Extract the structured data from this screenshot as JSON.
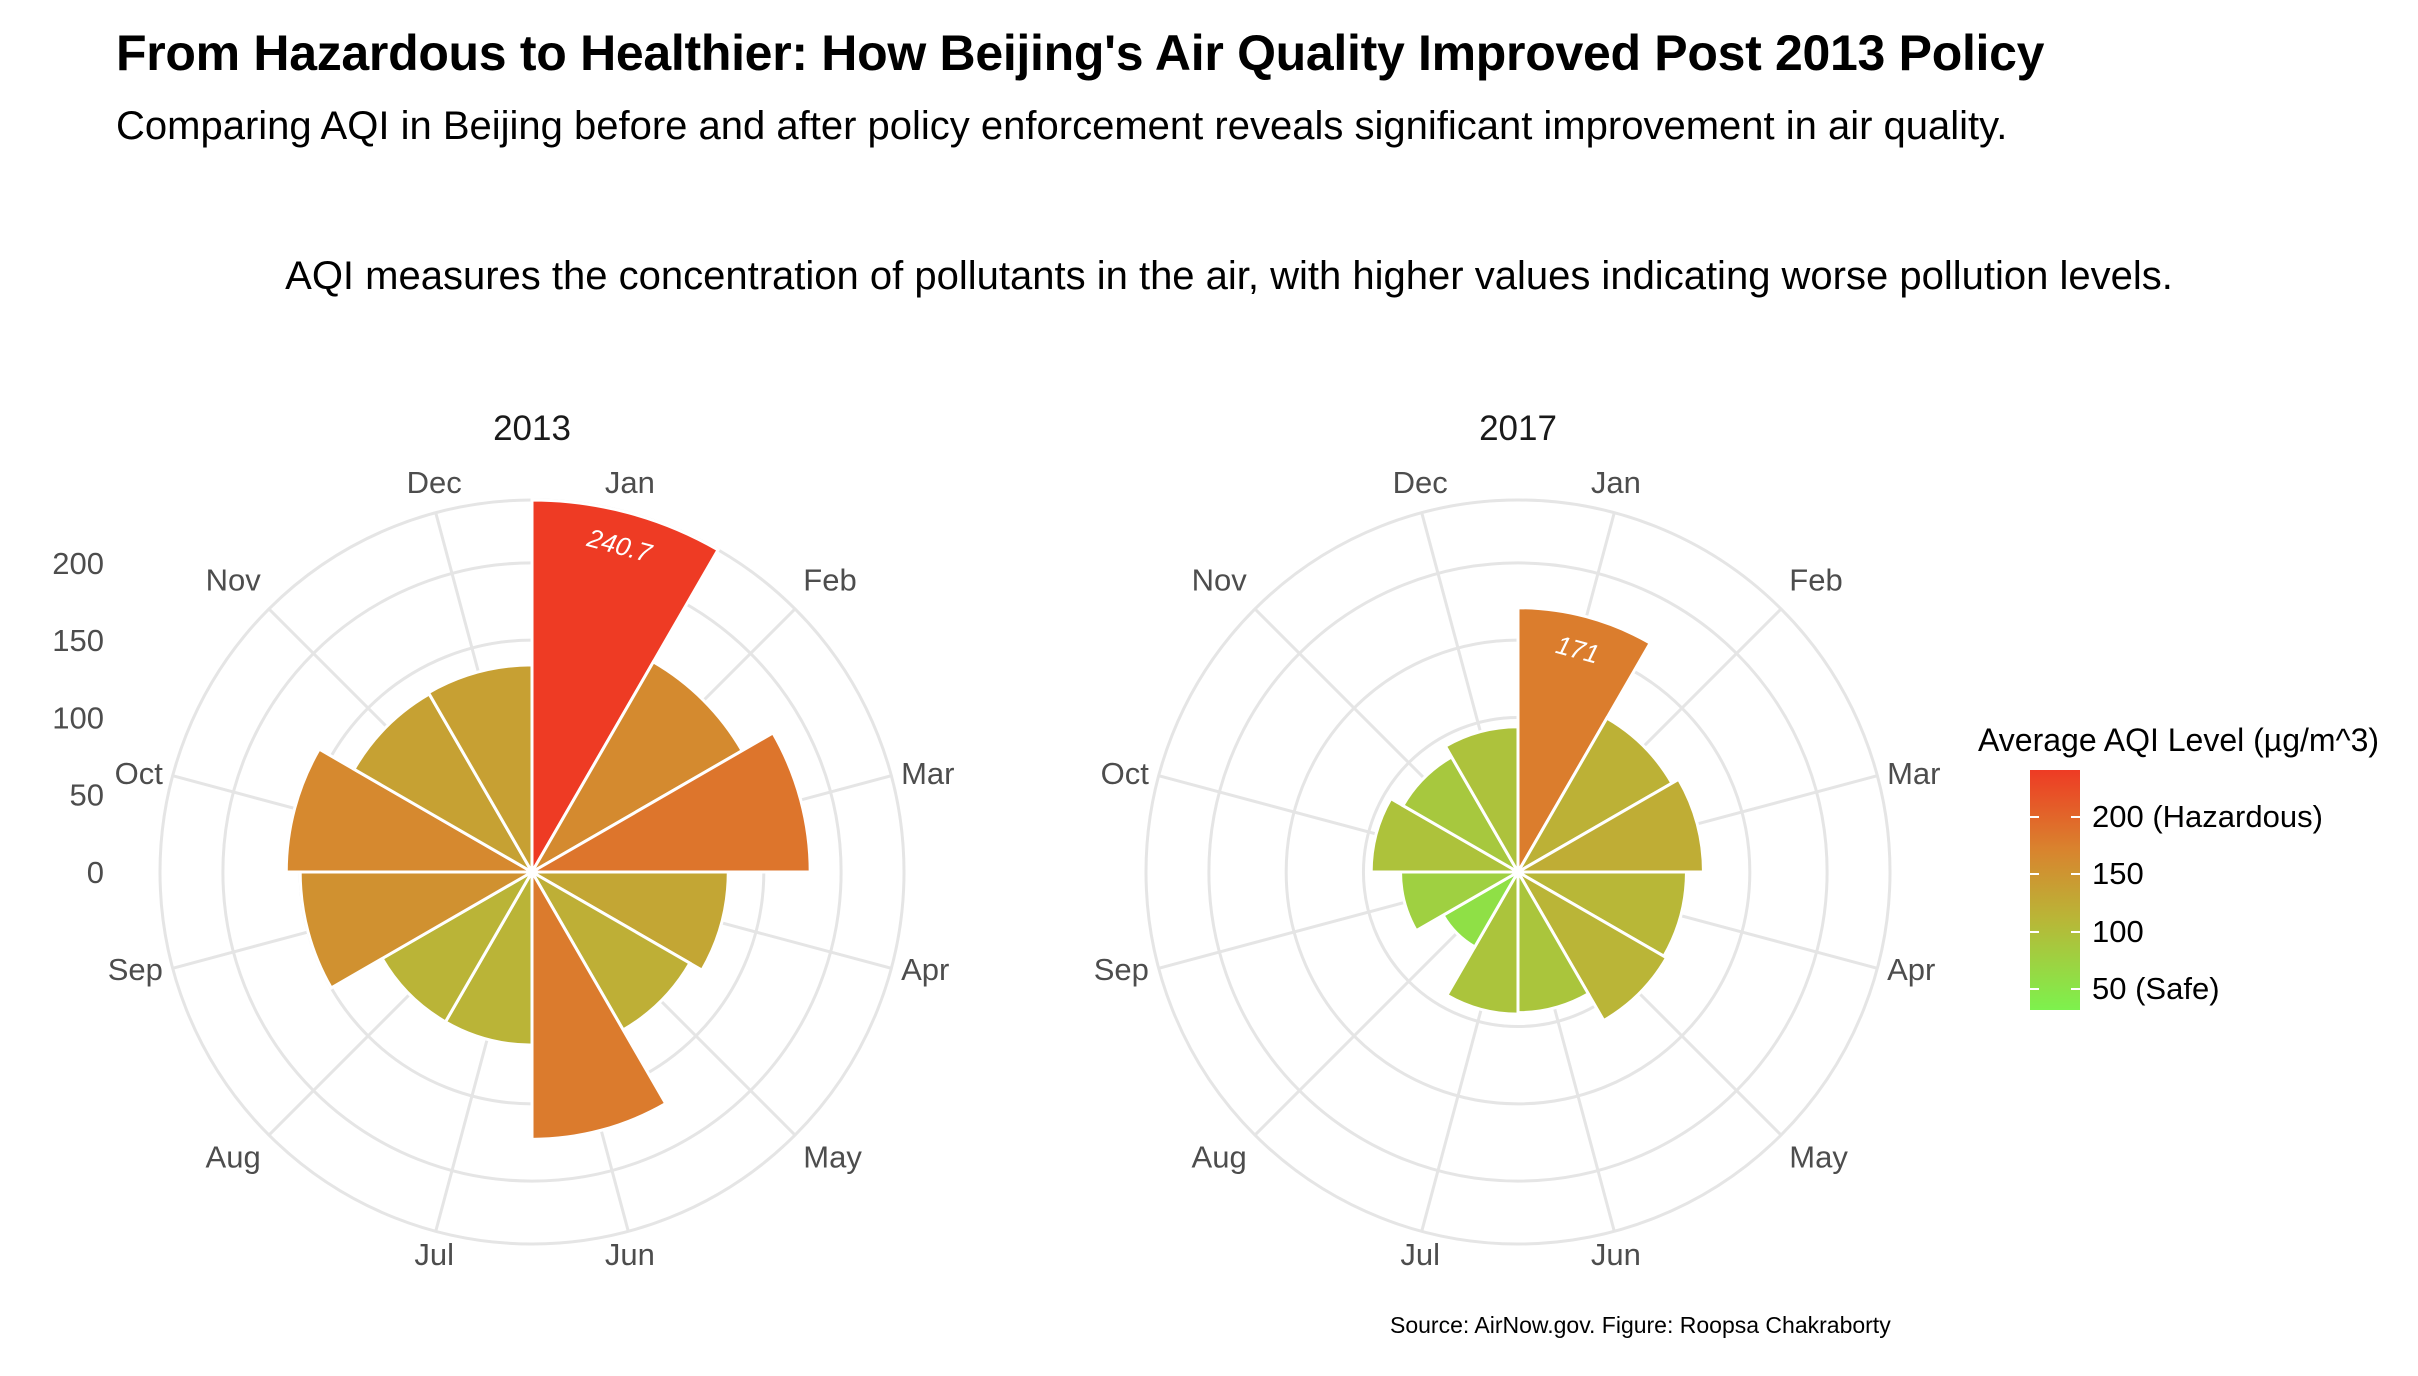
{
  "header": {
    "title": "From Hazardous to Healthier: How Beijing's Air Quality Improved Post 2013 Policy",
    "subtitle": "Comparing AQI in Beijing before and after policy enforcement reveals significant improvement in air quality.",
    "caption": "AQI measures the concentration of pollutants in the air, with higher values indicating worse pollution levels."
  },
  "footer": {
    "source": "Source: AirNow.gov. Figure: Roopsa Chakraborty"
  },
  "legend": {
    "title": "Average AQI Level (µg/m^3)",
    "items": [
      {
        "label": "200 (Hazardous)",
        "value": 200
      },
      {
        "label": "150",
        "value": 150
      },
      {
        "label": "100",
        "value": 100
      },
      {
        "label": "50 (Safe)",
        "value": 50
      }
    ],
    "range": [
      32,
      240.7
    ],
    "colors": {
      "high": "#ee3b24",
      "mid": "#d9832e",
      "low": "#b9b637",
      "safe": "#7df24d"
    }
  },
  "chart_data": {
    "type": "polar-bar",
    "months": [
      "Jan",
      "Feb",
      "Mar",
      "Apr",
      "May",
      "Jun",
      "Jul",
      "Aug",
      "Sep",
      "Oct",
      "Nov",
      "Dec"
    ],
    "radial_ticks": [
      "0",
      "50",
      "100",
      "150",
      "200"
    ],
    "radial_tick_values": [
      0,
      50,
      100,
      150,
      200
    ],
    "rlim": [
      0,
      240.7
    ],
    "grid": true,
    "legend_position": "right",
    "panels": [
      {
        "title": "2013",
        "values": [
          240.7,
          157,
          180,
          127,
          118,
          173,
          112,
          112,
          150,
          159,
          133,
          134
        ],
        "annotation": {
          "month": "Jan",
          "text": "240.7"
        }
      },
      {
        "title": "2017",
        "values": [
          171,
          115,
          120,
          109,
          111,
          91,
          92,
          56,
          76,
          95,
          86,
          94
        ],
        "annotation": {
          "month": "Jan",
          "text": "171"
        }
      }
    ]
  }
}
